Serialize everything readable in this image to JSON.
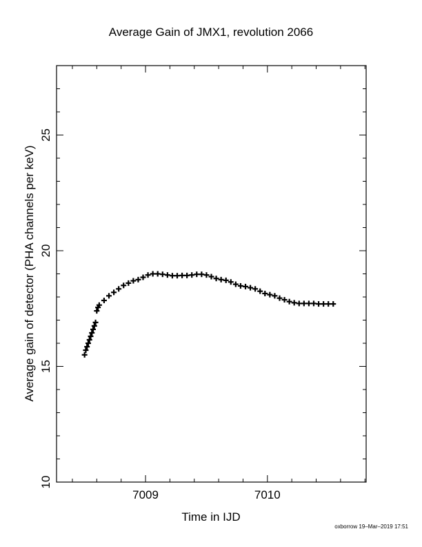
{
  "chart_data": {
    "type": "scatter",
    "title": "Average Gain of JMX1, revolution 2066",
    "xlabel": "Time in IJD",
    "ylabel": "Average gain of detector (PHA channels per keV)",
    "xlim": [
      7008.27,
      7010.81
    ],
    "ylim": [
      10,
      28
    ],
    "x_ticks": [
      7009,
      7010
    ],
    "y_ticks": [
      10,
      15,
      20,
      25
    ],
    "grid": false,
    "marker": "plus",
    "series": [
      {
        "x": [
          7008.5,
          7008.51,
          7008.52,
          7008.53,
          7008.54,
          7008.55,
          7008.56,
          7008.57,
          7008.58,
          7008.59,
          7008.6,
          7008.61,
          7008.62,
          7008.66,
          7008.7,
          7008.74,
          7008.78,
          7008.82,
          7008.86,
          7008.9,
          7008.94,
          7008.98,
          7009.02,
          7009.06,
          7009.1,
          7009.14,
          7009.18,
          7009.22,
          7009.26,
          7009.3,
          7009.34,
          7009.38,
          7009.42,
          7009.46,
          7009.5,
          7009.54,
          7009.58,
          7009.62,
          7009.66,
          7009.7,
          7009.74,
          7009.78,
          7009.82,
          7009.86,
          7009.9,
          7009.94,
          7009.98,
          7010.02,
          7010.06,
          7010.1,
          7010.14,
          7010.18,
          7010.22,
          7010.26,
          7010.3,
          7010.34,
          7010.38,
          7010.42,
          7010.46,
          7010.5,
          7010.54
        ],
        "y": [
          15.5,
          15.7,
          15.85,
          16.0,
          16.15,
          16.3,
          16.45,
          16.6,
          16.75,
          16.9,
          17.4,
          17.55,
          17.65,
          17.85,
          18.05,
          18.2,
          18.35,
          18.5,
          18.6,
          18.7,
          18.75,
          18.85,
          18.95,
          19.0,
          19.0,
          18.98,
          18.95,
          18.92,
          18.92,
          18.93,
          18.93,
          18.95,
          18.98,
          18.98,
          18.95,
          18.88,
          18.8,
          18.75,
          18.72,
          18.65,
          18.55,
          18.48,
          18.45,
          18.4,
          18.35,
          18.25,
          18.15,
          18.1,
          18.05,
          17.95,
          17.88,
          17.8,
          17.75,
          17.72,
          17.72,
          17.72,
          17.72,
          17.7,
          17.7,
          17.7,
          17.7
        ]
      }
    ]
  },
  "footer_text": "oxborrow 19–Mar–2019 17:51"
}
